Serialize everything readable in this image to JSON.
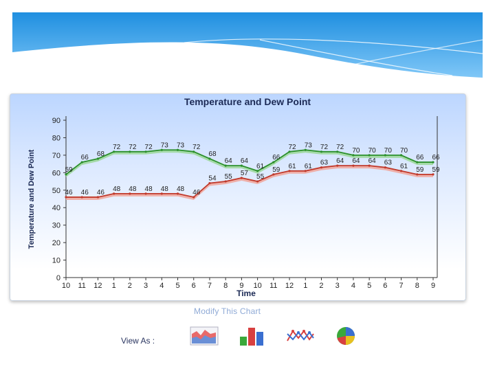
{
  "chart_data": {
    "type": "line",
    "title": "Temperature and Dew Point",
    "xlabel": "Time",
    "ylabel": "Temperature and Dew Point",
    "ylim": [
      0,
      90
    ],
    "yticks": [
      "0",
      "10",
      "20",
      "30",
      "40",
      "50",
      "60",
      "70",
      "80",
      "90"
    ],
    "categories": [
      "10",
      "11",
      "12",
      "1",
      "2",
      "3",
      "4",
      "5",
      "6",
      "7",
      "8",
      "9",
      "10",
      "11",
      "12",
      "1",
      "2",
      "3",
      "4",
      "5",
      "6",
      "7",
      "8",
      "9"
    ],
    "grid": false,
    "series": [
      {
        "color": "#2b8f2b",
        "fill": "#9fd89f",
        "values": [
          59,
          66,
          68,
          72,
          72,
          72,
          73,
          73,
          72,
          68,
          64,
          64,
          61,
          66,
          72,
          73,
          72,
          72,
          70,
          70,
          70,
          70,
          66,
          66
        ],
        "labels": [
          "59",
          "66",
          "68",
          "72",
          "72",
          "72",
          "73",
          "73",
          "72",
          "68",
          "64",
          "64",
          "61",
          "66",
          "72",
          "73",
          "72",
          "72",
          "70",
          "70",
          "70",
          "70",
          "66",
          "66"
        ]
      },
      {
        "color": "#c0392b",
        "fill": "#f0a8a0",
        "values": [
          46,
          46,
          46,
          48,
          48,
          48,
          48,
          48,
          46,
          54,
          55,
          57,
          55,
          59,
          61,
          61,
          63,
          64,
          64,
          64,
          63,
          61,
          59,
          59
        ],
        "labels": [
          "46",
          "46",
          "46",
          "48",
          "48",
          "48",
          "48",
          "48",
          "46",
          "54",
          "55",
          "57",
          "55",
          "59",
          "61",
          "61",
          "63",
          "64",
          "64",
          "64",
          "63",
          "61",
          "59",
          "59"
        ]
      }
    ]
  },
  "footer": {
    "modify_link": "Modify This Chart",
    "view_as": "View As :",
    "view_icons": [
      "area-chart-icon",
      "bar-chart-icon",
      "line-chart-icon",
      "pie-chart-icon"
    ]
  }
}
